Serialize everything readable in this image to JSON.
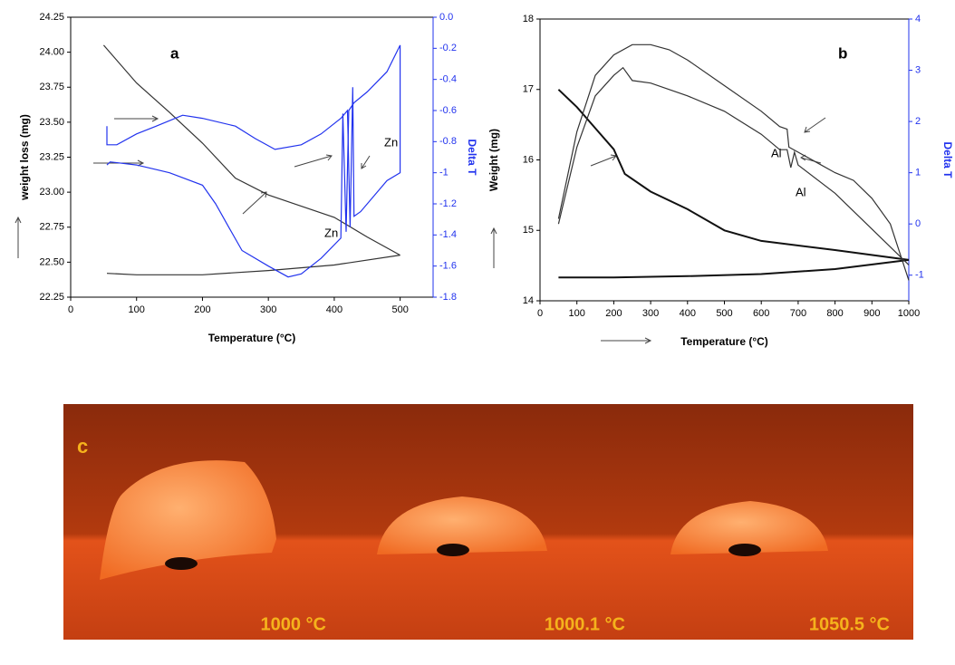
{
  "chart_data": [
    {
      "type": "line",
      "title": "a",
      "xlabel": "Temperature (°C)",
      "ylabel": "weight loss (mg)",
      "y2label": "Delta T",
      "xlim": [
        0,
        550
      ],
      "xticks": [
        0,
        100,
        200,
        300,
        400,
        500
      ],
      "ylim": [
        22.25,
        24.25
      ],
      "yticks": [
        {
          "value": 22.25,
          "label": "22.25"
        },
        {
          "value": 22.5,
          "label": "22.50"
        },
        {
          "value": 22.75,
          "label": "22.75"
        },
        {
          "value": 23,
          "label": "23.00"
        },
        {
          "value": 23.25,
          "label": "23.25"
        },
        {
          "value": 23.5,
          "label": "23.50"
        },
        {
          "value": 23.75,
          "label": "23.75"
        },
        {
          "value": 24,
          "label": "24.00"
        },
        {
          "value": 24.25,
          "label": "24.25"
        }
      ],
      "y2lim": [
        -1.8,
        0
      ],
      "y2ticks": [
        -1.8,
        -1.6,
        -1.4,
        -1.2,
        -1,
        -0.8,
        -0.6,
        -0.4,
        -0.2,
        {
          "value": 0,
          "label": "0.0"
        }
      ],
      "annotations": [
        "Zn",
        "Zn"
      ],
      "series": [
        {
          "color": "#333333",
          "x": [
            50,
            100,
            150,
            200,
            250,
            300,
            350,
            400,
            450,
            500
          ],
          "values": [
            24.05,
            23.78,
            23.57,
            23.35,
            23.1,
            22.98,
            22.9,
            22.82,
            22.68,
            22.55
          ]
        },
        {
          "color": "#333333",
          "x": [
            500,
            400,
            300,
            200,
            100,
            55
          ],
          "values": [
            22.55,
            22.48,
            22.44,
            22.41,
            22.41,
            22.42
          ]
        },
        {
          "color": "#2233ee",
          "axis": "y2",
          "x": [
            55,
            60,
            100,
            130,
            150,
            200,
            220,
            240,
            260,
            300,
            330,
            350,
            380,
            410,
            413,
            418,
            422,
            430,
            450,
            480,
            500
          ],
          "values": [
            -0.95,
            -0.93,
            -0.95,
            -0.98,
            -1,
            -1.08,
            -1.2,
            -1.35,
            -1.5,
            -1.6,
            -1.67,
            -1.65,
            -1.55,
            -1.42,
            -0.62,
            -1.38,
            -0.6,
            -0.55,
            -0.48,
            -0.35,
            -0.18
          ]
        },
        {
          "color": "#2233ee",
          "axis": "y2",
          "x": [
            500,
            500,
            480,
            440,
            430,
            428,
            424,
            420,
            410,
            380,
            350,
            310,
            280,
            250,
            200,
            170,
            130,
            100,
            70,
            55,
            55
          ],
          "values": [
            -0.18,
            -1,
            -1.05,
            -1.25,
            -1.28,
            -0.45,
            -1.35,
            -0.6,
            -0.65,
            -0.75,
            -0.82,
            -0.85,
            -0.78,
            -0.7,
            -0.65,
            -0.63,
            -0.7,
            -0.75,
            -0.82,
            -0.82,
            -0.7
          ]
        }
      ]
    },
    {
      "type": "line",
      "title": "b",
      "xlabel": "Temperature (°C)",
      "ylabel": "Weight (mg)",
      "y2label": "Delta T",
      "xlim": [
        0,
        1000
      ],
      "xticks": [
        0,
        100,
        200,
        300,
        400,
        500,
        600,
        700,
        800,
        900,
        1000
      ],
      "ylim": [
        14,
        18
      ],
      "yticks": [
        14,
        15,
        16,
        17,
        18
      ],
      "y2lim": [
        -1.5,
        4
      ],
      "y2ticks": [
        -1,
        0,
        1,
        2,
        3,
        4
      ],
      "annotations": [
        "Al",
        "Al"
      ],
      "series": [
        {
          "color": "#111111",
          "width": 2,
          "x": [
            50,
            100,
            150,
            200,
            230,
            300,
            400,
            500,
            600,
            800,
            1000
          ],
          "values": [
            17,
            16.75,
            16.45,
            16.15,
            15.8,
            15.55,
            15.3,
            15,
            14.85,
            14.72,
            14.58
          ]
        },
        {
          "color": "#111111",
          "width": 2,
          "x": [
            1000,
            800,
            600,
            400,
            200,
            50
          ],
          "values": [
            14.58,
            14.45,
            14.38,
            14.35,
            14.33,
            14.33
          ]
        },
        {
          "color": "#333333",
          "axis": "y2",
          "x": [
            50,
            100,
            150,
            200,
            250,
            300,
            350,
            400,
            500,
            600,
            650,
            670,
            675,
            700,
            750,
            800,
            850,
            900,
            950,
            1000
          ],
          "values": [
            0.1,
            1.8,
            2.9,
            3.3,
            3.5,
            3.5,
            3.4,
            3.2,
            2.7,
            2.2,
            1.9,
            1.85,
            1.5,
            1.4,
            1.2,
            1,
            0.85,
            0.5,
            0,
            -1.1
          ]
        },
        {
          "color": "#333333",
          "axis": "y2",
          "x": [
            50,
            100,
            150,
            200,
            225,
            250,
            300,
            400,
            500,
            600,
            650,
            670,
            680,
            690,
            700,
            800,
            900,
            1000
          ],
          "values": [
            0,
            1.5,
            2.5,
            2.9,
            3.05,
            2.8,
            2.75,
            2.5,
            2.2,
            1.75,
            1.45,
            1.45,
            1.1,
            1.4,
            1.15,
            0.6,
            -0.1,
            -0.8
          ]
        }
      ]
    }
  ],
  "photo_panel": {
    "label": "c",
    "captions": [
      "1000 °C",
      "1000.1 °C",
      "1050.5 °C"
    ]
  }
}
